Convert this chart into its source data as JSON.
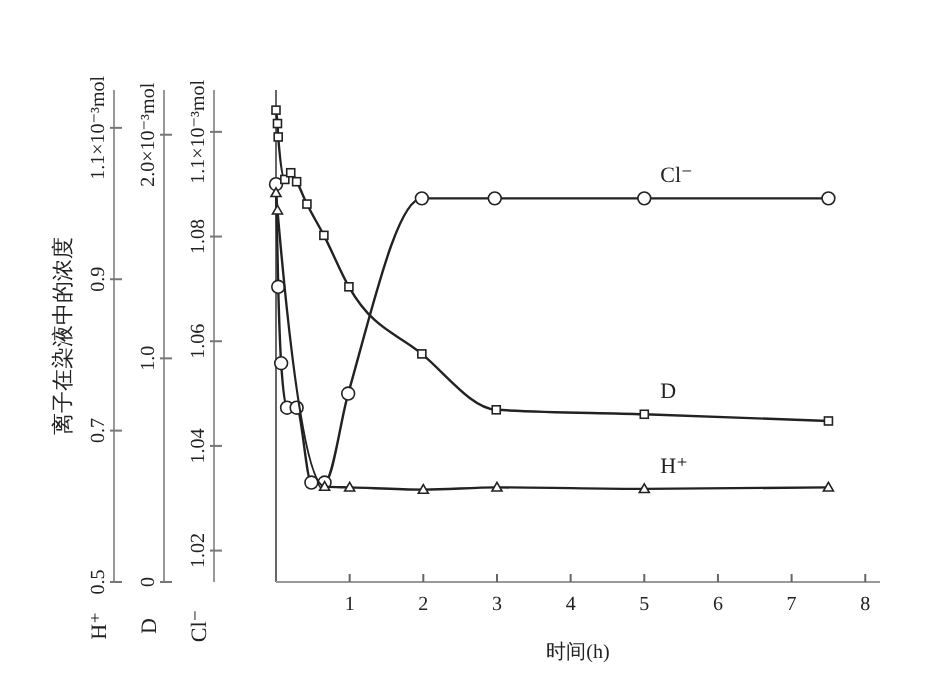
{
  "chart_data": {
    "type": "line",
    "xlabel": "时间(h)",
    "annotations": [
      "离子在染液中的浓度"
    ],
    "xlim": [
      0,
      8.2
    ],
    "xticks": [
      1,
      2,
      3,
      4,
      5,
      6,
      7,
      8
    ],
    "ylim": [
      1.014,
      1.108
    ],
    "yticks": [
      1.02,
      1.04,
      1.06,
      1.08,
      {
        "value": 1.1,
        "label": "1.1×10⁻³mol"
      }
    ],
    "y2lim": [
      0,
      2.2
    ],
    "y2ticks": [
      0,
      {
        "value": 1,
        "label": "1.0"
      },
      {
        "value": 2,
        "label": "2.0×10⁻³mol"
      }
    ],
    "y3lim": [
      0.5,
      1.15
    ],
    "y3ticks": [
      0.5,
      0.7,
      0.9,
      {
        "value": 1.1,
        "label": "1.1×10⁻³mol"
      }
    ],
    "series": [
      {
        "name": "H⁺",
        "color": "#222222",
        "marker": "triangle",
        "axis": "y3",
        "x": [
          0,
          0.02,
          0.66,
          1,
          2,
          3,
          5,
          7.5
        ],
        "values": [
          1.014,
          0.991,
          0.626,
          0.625,
          0.622,
          0.625,
          0.623,
          0.625
        ]
      },
      {
        "name": "D",
        "color": "#222222",
        "marker": "square",
        "axis": "y2",
        "x": [
          0,
          0.02,
          0.03,
          0.12,
          0.2,
          0.28,
          0.42,
          0.65,
          0.99,
          1.98,
          2.99,
          5,
          7.5
        ],
        "values": [
          2.11,
          2.05,
          1.99,
          1.8,
          1.83,
          1.79,
          1.69,
          1.55,
          1.32,
          1.02,
          0.77,
          0.75,
          0.72
        ]
      },
      {
        "name": "Cl⁻",
        "color": "#222222",
        "marker": "circle",
        "axis": "y",
        "x": [
          0,
          0.03,
          0.07,
          0.15,
          0.28,
          0.48,
          0.66,
          0.98,
          1.98,
          2.97,
          5,
          7.5
        ],
        "values": [
          1.09,
          1.0704,
          1.0558,
          1.0473,
          1.0473,
          1.033,
          1.033,
          1.05,
          1.0873,
          1.0873,
          1.0873,
          1.0873
        ]
      }
    ]
  }
}
